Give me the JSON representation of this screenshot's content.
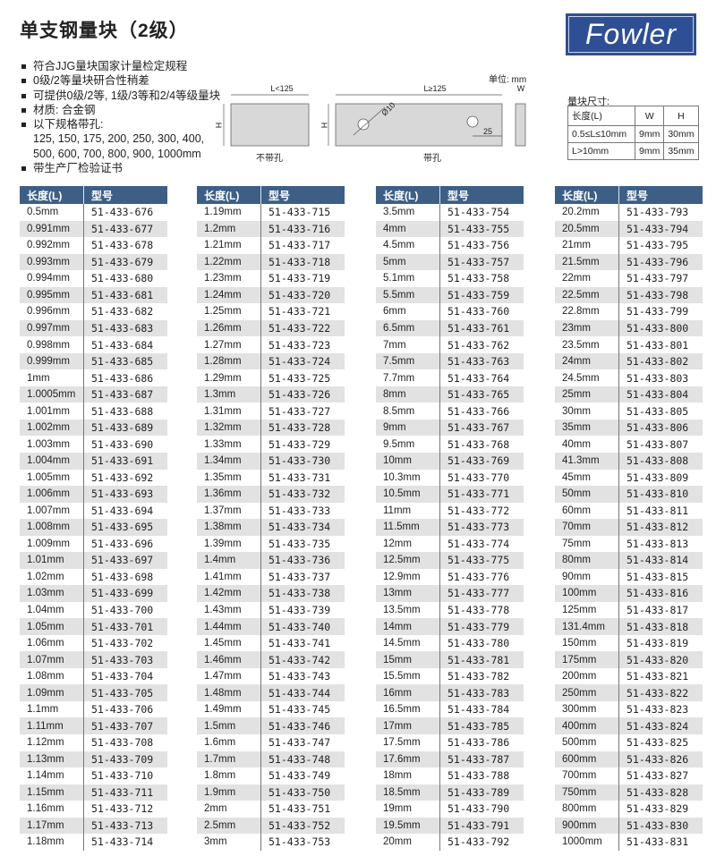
{
  "title": "单支钢量块（2级）",
  "logo": {
    "text": "Fowler",
    "color": "#2e4f93"
  },
  "bullets": [
    "符合JJG量块国家计量检定规程",
    "0级/2等量块研合性稍差",
    "可提供0级/2等, 1级/3等和2/4等级量块",
    "材质: 合金钢",
    "以下规格带孔:"
  ],
  "bullet_continuation": [
    "125, 150, 175, 200, 250, 300, 400,",
    "500, 600, 700, 800, 900, 1000mm"
  ],
  "bullet_last": "带生产厂检验证书",
  "diagram": {
    "unit": "单位: mm",
    "left_label": "L<125",
    "right_label": "L≥125",
    "w_label": "W",
    "h_label": "H",
    "hole_label": "Ø10",
    "offset_label": "25",
    "caption_nohole": "不带孔",
    "caption_hole": "带孔"
  },
  "dim_table": {
    "title": "量块尺寸:",
    "header": [
      "长度(L)",
      "W",
      "H"
    ],
    "rows": [
      [
        "0.5≤L≤10mm",
        "9mm",
        "30mm"
      ],
      [
        "L>10mm",
        "9mm",
        "35mm"
      ]
    ]
  },
  "colors": {
    "header": "#3d5f86",
    "stripe": "#e2e2e2"
  },
  "tables": {
    "header": [
      "长度(L)",
      "型号"
    ],
    "columns": [
      [
        [
          "0.5mm",
          "51-433-676"
        ],
        [
          "0.991mm",
          "51-433-677"
        ],
        [
          "0.992mm",
          "51-433-678"
        ],
        [
          "0.993mm",
          "51-433-679"
        ],
        [
          "0.994mm",
          "51-433-680"
        ],
        [
          "0.995mm",
          "51-433-681"
        ],
        [
          "0.996mm",
          "51-433-682"
        ],
        [
          "0.997mm",
          "51-433-683"
        ],
        [
          "0.998mm",
          "51-433-684"
        ],
        [
          "0.999mm",
          "51-433-685"
        ],
        [
          "1mm",
          "51-433-686"
        ],
        [
          "1.0005mm",
          "51-433-687"
        ],
        [
          "1.001mm",
          "51-433-688"
        ],
        [
          "1.002mm",
          "51-433-689"
        ],
        [
          "1.003mm",
          "51-433-690"
        ],
        [
          "1.004mm",
          "51-433-691"
        ],
        [
          "1.005mm",
          "51-433-692"
        ],
        [
          "1.006mm",
          "51-433-693"
        ],
        [
          "1.007mm",
          "51-433-694"
        ],
        [
          "1.008mm",
          "51-433-695"
        ],
        [
          "1.009mm",
          "51-433-696"
        ],
        [
          "1.01mm",
          "51-433-697"
        ],
        [
          "1.02mm",
          "51-433-698"
        ],
        [
          "1.03mm",
          "51-433-699"
        ],
        [
          "1.04mm",
          "51-433-700"
        ],
        [
          "1.05mm",
          "51-433-701"
        ],
        [
          "1.06mm",
          "51-433-702"
        ],
        [
          "1.07mm",
          "51-433-703"
        ],
        [
          "1.08mm",
          "51-433-704"
        ],
        [
          "1.09mm",
          "51-433-705"
        ],
        [
          "1.1mm",
          "51-433-706"
        ],
        [
          "1.11mm",
          "51-433-707"
        ],
        [
          "1.12mm",
          "51-433-708"
        ],
        [
          "1.13mm",
          "51-433-709"
        ],
        [
          "1.14mm",
          "51-433-710"
        ],
        [
          "1.15mm",
          "51-433-711"
        ],
        [
          "1.16mm",
          "51-433-712"
        ],
        [
          "1.17mm",
          "51-433-713"
        ],
        [
          "1.18mm",
          "51-433-714"
        ]
      ],
      [
        [
          "1.19mm",
          "51-433-715"
        ],
        [
          "1.2mm",
          "51-433-716"
        ],
        [
          "1.21mm",
          "51-433-717"
        ],
        [
          "1.22mm",
          "51-433-718"
        ],
        [
          "1.23mm",
          "51-433-719"
        ],
        [
          "1.24mm",
          "51-433-720"
        ],
        [
          "1.25mm",
          "51-433-721"
        ],
        [
          "1.26mm",
          "51-433-722"
        ],
        [
          "1.27mm",
          "51-433-723"
        ],
        [
          "1.28mm",
          "51-433-724"
        ],
        [
          "1.29mm",
          "51-433-725"
        ],
        [
          "1.3mm",
          "51-433-726"
        ],
        [
          "1.31mm",
          "51-433-727"
        ],
        [
          "1.32mm",
          "51-433-728"
        ],
        [
          "1.33mm",
          "51-433-729"
        ],
        [
          "1.34mm",
          "51-433-730"
        ],
        [
          "1.35mm",
          "51-433-731"
        ],
        [
          "1.36mm",
          "51-433-732"
        ],
        [
          "1.37mm",
          "51-433-733"
        ],
        [
          "1.38mm",
          "51-433-734"
        ],
        [
          "1.39mm",
          "51-433-735"
        ],
        [
          "1.4mm",
          "51-433-736"
        ],
        [
          "1.41mm",
          "51-433-737"
        ],
        [
          "1.42mm",
          "51-433-738"
        ],
        [
          "1.43mm",
          "51-433-739"
        ],
        [
          "1.44mm",
          "51-433-740"
        ],
        [
          "1.45mm",
          "51-433-741"
        ],
        [
          "1.46mm",
          "51-433-742"
        ],
        [
          "1.47mm",
          "51-433-743"
        ],
        [
          "1.48mm",
          "51-433-744"
        ],
        [
          "1.49mm",
          "51-433-745"
        ],
        [
          "1.5mm",
          "51-433-746"
        ],
        [
          "1.6mm",
          "51-433-747"
        ],
        [
          "1.7mm",
          "51-433-748"
        ],
        [
          "1.8mm",
          "51-433-749"
        ],
        [
          "1.9mm",
          "51-433-750"
        ],
        [
          "2mm",
          "51-433-751"
        ],
        [
          "2.5mm",
          "51-433-752"
        ],
        [
          "3mm",
          "51-433-753"
        ]
      ],
      [
        [
          "3.5mm",
          "51-433-754"
        ],
        [
          "4mm",
          "51-433-755"
        ],
        [
          "4.5mm",
          "51-433-756"
        ],
        [
          "5mm",
          "51-433-757"
        ],
        [
          "5.1mm",
          "51-433-758"
        ],
        [
          "5.5mm",
          "51-433-759"
        ],
        [
          "6mm",
          "51-433-760"
        ],
        [
          "6.5mm",
          "51-433-761"
        ],
        [
          "7mm",
          "51-433-762"
        ],
        [
          "7.5mm",
          "51-433-763"
        ],
        [
          "7.7mm",
          "51-433-764"
        ],
        [
          "8mm",
          "51-433-765"
        ],
        [
          "8.5mm",
          "51-433-766"
        ],
        [
          "9mm",
          "51-433-767"
        ],
        [
          "9.5mm",
          "51-433-768"
        ],
        [
          "10mm",
          "51-433-769"
        ],
        [
          "10.3mm",
          "51-433-770"
        ],
        [
          "10.5mm",
          "51-433-771"
        ],
        [
          "11mm",
          "51-433-772"
        ],
        [
          "11.5mm",
          "51-433-773"
        ],
        [
          "12mm",
          "51-433-774"
        ],
        [
          "12.5mm",
          "51-433-775"
        ],
        [
          "12.9mm",
          "51-433-776"
        ],
        [
          "13mm",
          "51-433-777"
        ],
        [
          "13.5mm",
          "51-433-778"
        ],
        [
          "14mm",
          "51-433-779"
        ],
        [
          "14.5mm",
          "51-433-780"
        ],
        [
          "15mm",
          "51-433-781"
        ],
        [
          "15.5mm",
          "51-433-782"
        ],
        [
          "16mm",
          "51-433-783"
        ],
        [
          "16.5mm",
          "51-433-784"
        ],
        [
          "17mm",
          "51-433-785"
        ],
        [
          "17.5mm",
          "51-433-786"
        ],
        [
          "17.6mm",
          "51-433-787"
        ],
        [
          "18mm",
          "51-433-788"
        ],
        [
          "18.5mm",
          "51-433-789"
        ],
        [
          "19mm",
          "51-433-790"
        ],
        [
          "19.5mm",
          "51-433-791"
        ],
        [
          "20mm",
          "51-433-792"
        ]
      ],
      [
        [
          "20.2mm",
          "51-433-793"
        ],
        [
          "20.5mm",
          "51-433-794"
        ],
        [
          "21mm",
          "51-433-795"
        ],
        [
          "21.5mm",
          "51-433-796"
        ],
        [
          "22mm",
          "51-433-797"
        ],
        [
          "22.5mm",
          "51-433-798"
        ],
        [
          "22.8mm",
          "51-433-799"
        ],
        [
          "23mm",
          "51-433-800"
        ],
        [
          "23.5mm",
          "51-433-801"
        ],
        [
          "24mm",
          "51-433-802"
        ],
        [
          "24.5mm",
          "51-433-803"
        ],
        [
          "25mm",
          "51-433-804"
        ],
        [
          "30mm",
          "51-433-805"
        ],
        [
          "35mm",
          "51-433-806"
        ],
        [
          "40mm",
          "51-433-807"
        ],
        [
          "41.3mm",
          "51-433-808"
        ],
        [
          "45mm",
          "51-433-809"
        ],
        [
          "50mm",
          "51-433-810"
        ],
        [
          "60mm",
          "51-433-811"
        ],
        [
          "70mm",
          "51-433-812"
        ],
        [
          "75mm",
          "51-433-813"
        ],
        [
          "80mm",
          "51-433-814"
        ],
        [
          "90mm",
          "51-433-815"
        ],
        [
          "100mm",
          "51-433-816"
        ],
        [
          "125mm",
          "51-433-817"
        ],
        [
          "131.4mm",
          "51-433-818"
        ],
        [
          "150mm",
          "51-433-819"
        ],
        [
          "175mm",
          "51-433-820"
        ],
        [
          "200mm",
          "51-433-821"
        ],
        [
          "250mm",
          "51-433-822"
        ],
        [
          "300mm",
          "51-433-823"
        ],
        [
          "400mm",
          "51-433-824"
        ],
        [
          "500mm",
          "51-433-825"
        ],
        [
          "600mm",
          "51-433-826"
        ],
        [
          "700mm",
          "51-433-827"
        ],
        [
          "750mm",
          "51-433-828"
        ],
        [
          "800mm",
          "51-433-829"
        ],
        [
          "900mm",
          "51-433-830"
        ],
        [
          "1000mm",
          "51-433-831"
        ]
      ]
    ]
  }
}
